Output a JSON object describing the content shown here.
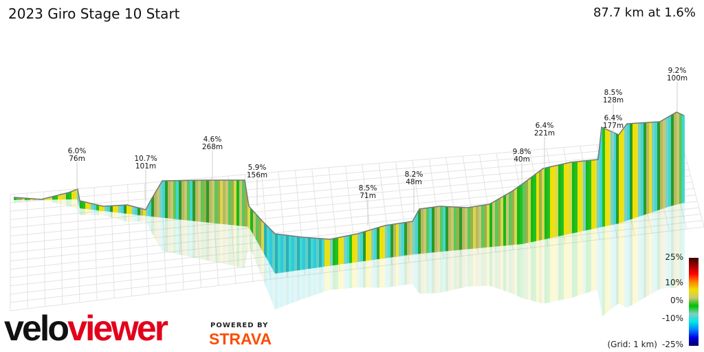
{
  "header": {
    "title": "2023 Giro Stage 10 Start",
    "summary": "87.7 km at 1.6%"
  },
  "chart_data": {
    "type": "3d-elevation-profile",
    "title": "2023 Giro Stage 10 Start",
    "distance_km": 87.7,
    "avg_gradient_pct": 1.6,
    "climbs": [
      {
        "grade": "6.0%",
        "length": "76m"
      },
      {
        "grade": "10.7%",
        "length": "101m"
      },
      {
        "grade": "4.6%",
        "length": "268m"
      },
      {
        "grade": "5.9%",
        "length": "156m"
      },
      {
        "grade": "8.5%",
        "length": "71m"
      },
      {
        "grade": "8.2%",
        "length": "48m"
      },
      {
        "grade": "9.8%",
        "length": "40m"
      },
      {
        "grade": "6.4%",
        "length": "221m"
      },
      {
        "grade": "8.5%",
        "length": "128m"
      },
      {
        "grade": "6.4%",
        "length": "177m"
      },
      {
        "grade": "9.2%",
        "length": "100m"
      }
    ],
    "legend": {
      "ticks": [
        "25%",
        "10%",
        "0%",
        "-10%",
        "-25%"
      ],
      "grid_note": "(Grid: 1 km)",
      "colors": [
        "#3a0000",
        "#ff0000",
        "#f0e000",
        "#00c000",
        "#00e8e8",
        "#0000e0",
        "#000060"
      ]
    }
  },
  "branding": {
    "logo": "veloviewer",
    "logo_part1": "velo",
    "logo_part2": "viewer",
    "powered_by": "POWERED BY",
    "strava": "STRAVA"
  }
}
